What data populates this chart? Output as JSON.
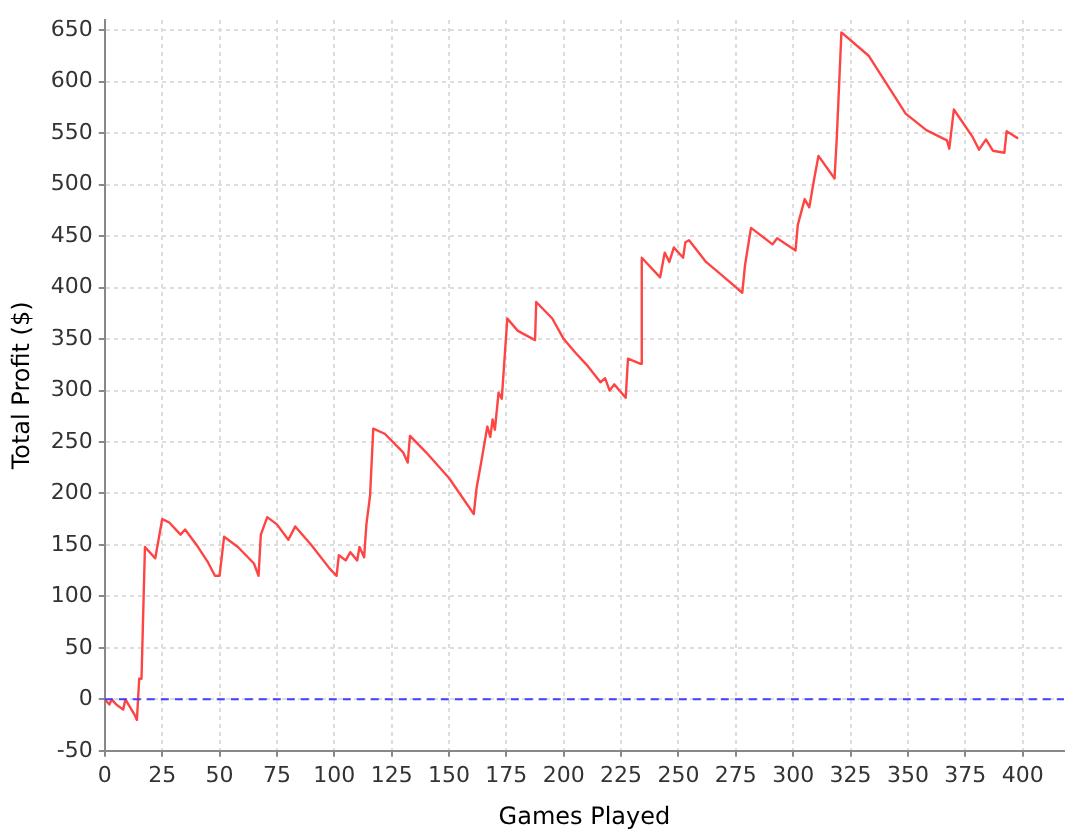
{
  "chart_data": {
    "type": "line",
    "xlabel": "Games Played",
    "ylabel": "Total Profit ($)",
    "xlim": [
      0,
      418
    ],
    "xticks": [
      0,
      25,
      50,
      75,
      100,
      125,
      150,
      175,
      200,
      225,
      250,
      275,
      300,
      325,
      350,
      375,
      400
    ],
    "ylim": [
      -50,
      660
    ],
    "yticks": [
      -50,
      0,
      50,
      100,
      150,
      200,
      250,
      300,
      350,
      400,
      450,
      500,
      550,
      600,
      650
    ],
    "grid": true,
    "legend": false,
    "marker": "none",
    "line_style": "solid",
    "ref_lines": [
      {
        "axis": "y",
        "value": 0,
        "color": "#4040ff",
        "line_style": "dashed"
      }
    ],
    "series": [
      {
        "color": "#ff4444",
        "x": [
          0,
          2,
          3,
          5,
          8,
          9,
          13,
          14,
          15,
          16,
          17.5,
          22,
          25,
          28,
          33,
          35,
          40,
          45,
          48,
          50,
          52,
          58,
          65,
          67,
          68,
          70.8,
          75,
          80,
          83,
          90,
          98,
          101,
          102,
          105,
          107,
          110,
          111,
          113,
          114,
          115.6,
          117,
          122,
          130,
          132,
          133,
          140,
          150,
          160.8,
          162,
          164,
          166.7,
          168,
          169,
          170,
          171.6,
          173,
          175.4,
          180,
          187.5,
          188,
          195,
          200,
          205,
          210,
          216,
          218,
          220,
          222,
          227,
          228,
          233.5,
          234,
          242,
          244,
          246,
          248,
          252,
          253,
          254.6,
          262,
          270,
          277.8,
          279,
          281.6,
          291,
          293,
          301,
          302,
          305,
          307,
          309,
          311,
          318,
          319,
          321,
          333,
          349,
          358,
          367,
          368,
          370,
          378,
          381,
          384,
          387,
          392,
          393,
          398
        ],
        "values": [
          0,
          -5,
          0,
          -5,
          -10,
          0,
          -15,
          -20,
          20,
          20,
          148,
          137,
          175,
          172,
          160,
          165,
          150,
          133,
          120,
          120,
          158,
          148,
          132,
          120,
          160,
          177,
          170,
          155,
          168,
          150,
          127,
          120,
          140,
          135,
          143,
          135,
          148,
          138,
          170,
          198,
          263,
          258,
          240,
          230,
          256,
          240,
          215,
          180,
          205,
          230,
          265,
          255,
          272,
          262,
          298,
          292,
          370,
          358,
          349,
          386,
          370,
          350,
          337,
          325,
          308,
          312,
          300,
          306,
          293,
          331,
          326,
          429,
          410,
          434,
          425,
          439,
          429,
          444,
          446,
          425,
          410,
          395,
          422,
          458,
          442,
          448,
          436,
          461,
          486,
          478,
          504,
          528,
          506,
          546,
          648,
          625,
          569,
          553,
          543,
          535,
          573,
          547,
          534,
          544,
          533,
          531,
          552,
          545
        ]
      }
    ]
  }
}
